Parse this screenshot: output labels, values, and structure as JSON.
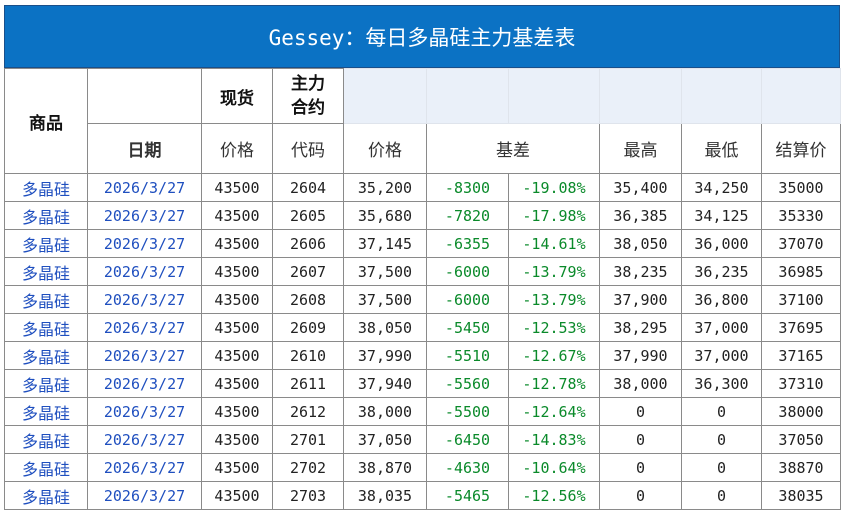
{
  "title": "Gessey：每日多晶硅主力基差表",
  "headers": {
    "product": "商品",
    "spot": "现货",
    "main_contract": "主力\n合约",
    "date": "日期",
    "spot_price": "价格",
    "code": "代码",
    "price": "价格",
    "basis": "基差",
    "high": "最高",
    "low": "最低",
    "settle": "结算价"
  },
  "rows": [
    {
      "name": "多晶硅",
      "date": "2026/3/27",
      "spot": "43500",
      "code": "2604",
      "price": "35,200",
      "basis": "-8300",
      "basis_pct": "-19.08%",
      "high": "35,400",
      "low": "34,250",
      "settle": "35000"
    },
    {
      "name": "多晶硅",
      "date": "2026/3/27",
      "spot": "43500",
      "code": "2605",
      "price": "35,680",
      "basis": "-7820",
      "basis_pct": "-17.98%",
      "high": "36,385",
      "low": "34,125",
      "settle": "35330"
    },
    {
      "name": "多晶硅",
      "date": "2026/3/27",
      "spot": "43500",
      "code": "2606",
      "price": "37,145",
      "basis": "-6355",
      "basis_pct": "-14.61%",
      "high": "38,050",
      "low": "36,000",
      "settle": "37070"
    },
    {
      "name": "多晶硅",
      "date": "2026/3/27",
      "spot": "43500",
      "code": "2607",
      "price": "37,500",
      "basis": "-6000",
      "basis_pct": "-13.79%",
      "high": "38,235",
      "low": "36,235",
      "settle": "36985"
    },
    {
      "name": "多晶硅",
      "date": "2026/3/27",
      "spot": "43500",
      "code": "2608",
      "price": "37,500",
      "basis": "-6000",
      "basis_pct": "-13.79%",
      "high": "37,900",
      "low": "36,800",
      "settle": "37100"
    },
    {
      "name": "多晶硅",
      "date": "2026/3/27",
      "spot": "43500",
      "code": "2609",
      "price": "38,050",
      "basis": "-5450",
      "basis_pct": "-12.53%",
      "high": "38,295",
      "low": "37,000",
      "settle": "37695"
    },
    {
      "name": "多晶硅",
      "date": "2026/3/27",
      "spot": "43500",
      "code": "2610",
      "price": "37,990",
      "basis": "-5510",
      "basis_pct": "-12.67%",
      "high": "37,990",
      "low": "37,000",
      "settle": "37165"
    },
    {
      "name": "多晶硅",
      "date": "2026/3/27",
      "spot": "43500",
      "code": "2611",
      "price": "37,940",
      "basis": "-5560",
      "basis_pct": "-12.78%",
      "high": "38,000",
      "low": "36,300",
      "settle": "37310"
    },
    {
      "name": "多晶硅",
      "date": "2026/3/27",
      "spot": "43500",
      "code": "2612",
      "price": "38,000",
      "basis": "-5500",
      "basis_pct": "-12.64%",
      "high": "0",
      "low": "0",
      "settle": "38000"
    },
    {
      "name": "多晶硅",
      "date": "2026/3/27",
      "spot": "43500",
      "code": "2701",
      "price": "37,050",
      "basis": "-6450",
      "basis_pct": "-14.83%",
      "high": "0",
      "low": "0",
      "settle": "37050"
    },
    {
      "name": "多晶硅",
      "date": "2026/3/27",
      "spot": "43500",
      "code": "2702",
      "price": "38,870",
      "basis": "-4630",
      "basis_pct": "-10.64%",
      "high": "0",
      "low": "0",
      "settle": "38870"
    },
    {
      "name": "多晶硅",
      "date": "2026/3/27",
      "spot": "43500",
      "code": "2703",
      "price": "38,035",
      "basis": "-5465",
      "basis_pct": "-12.56%",
      "high": "0",
      "low": "0",
      "settle": "38035"
    }
  ],
  "colors": {
    "title_bg": "#0b72c4",
    "link_blue": "#1f4fbf",
    "basis_green": "#0a8a2a",
    "header_shade": "#eaf0f9"
  }
}
